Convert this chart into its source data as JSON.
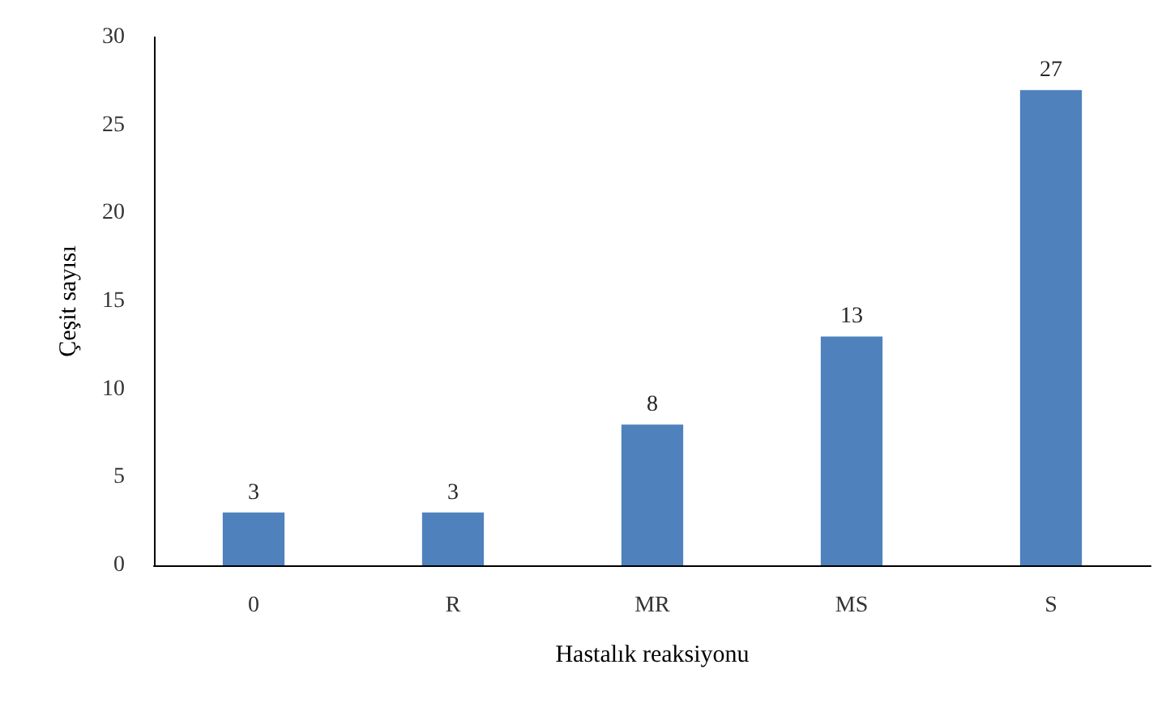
{
  "chart_data": {
    "type": "bar",
    "xlabel": "Hastalık reaksiyonu",
    "ylabel": "Çeşit sayısı",
    "categories": [
      "0",
      "R",
      "MR",
      "MS",
      "S"
    ],
    "values": [
      3,
      3,
      8,
      13,
      27
    ],
    "color": "#4f81bd",
    "ylim": [
      0,
      30
    ],
    "yticks": [
      0,
      5,
      10,
      15,
      20,
      25,
      30
    ],
    "grid": false,
    "data_labels": true
  }
}
